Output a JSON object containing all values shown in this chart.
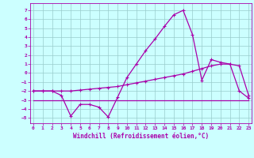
{
  "x": [
    0,
    1,
    2,
    3,
    4,
    5,
    6,
    7,
    8,
    9,
    10,
    11,
    12,
    13,
    14,
    15,
    16,
    17,
    18,
    19,
    20,
    21,
    22,
    23
  ],
  "line1_spiky": [
    -2,
    -2,
    -2,
    -2.5,
    -4.8,
    -3.5,
    -3.5,
    -3.8,
    -4.9,
    -2.7,
    -0.5,
    1.0,
    2.5,
    3.8,
    5.2,
    6.5,
    7.0,
    4.3,
    -0.8,
    1.5,
    1.2,
    1.0,
    -2.0,
    -2.8
  ],
  "line2_rising": [
    -2,
    -2,
    -2,
    -2,
    -2,
    -1.9,
    -1.8,
    -1.7,
    -1.6,
    -1.5,
    -1.3,
    -1.1,
    -0.9,
    -0.7,
    -0.5,
    -0.3,
    -0.1,
    0.2,
    0.5,
    0.8,
    1.0,
    1.0,
    0.8,
    -2.5
  ],
  "line3_flat": [
    -3.0,
    -3.0,
    -3.0,
    -3.0,
    -3.0,
    -3.0,
    -3.0,
    -3.0,
    -3.0,
    -3.0,
    -3.0,
    -3.0,
    -3.0,
    -3.0,
    -3.0,
    -3.0,
    -3.0,
    -3.0,
    -3.0,
    -3.0,
    -3.0,
    -3.0,
    -3.0,
    -3.0
  ],
  "line_color": "#aa00aa",
  "background_color": "#ccffff",
  "grid_color": "#99cccc",
  "xlabel": "Windchill (Refroidissement éolien,°C)",
  "ytick_labels": [
    "7",
    "6",
    "5",
    "4",
    "3",
    "2",
    "1",
    "0",
    "-1",
    "-2",
    "-3",
    "-4",
    "-5"
  ],
  "yticks": [
    7,
    6,
    5,
    4,
    3,
    2,
    1,
    0,
    -1,
    -2,
    -3,
    -4,
    -5
  ],
  "xticks": [
    0,
    1,
    2,
    3,
    4,
    5,
    6,
    7,
    8,
    9,
    10,
    11,
    12,
    13,
    14,
    15,
    16,
    17,
    18,
    19,
    20,
    21,
    22,
    23
  ],
  "ylim": [
    -5.6,
    7.8
  ],
  "xlim": [
    -0.3,
    23.3
  ]
}
